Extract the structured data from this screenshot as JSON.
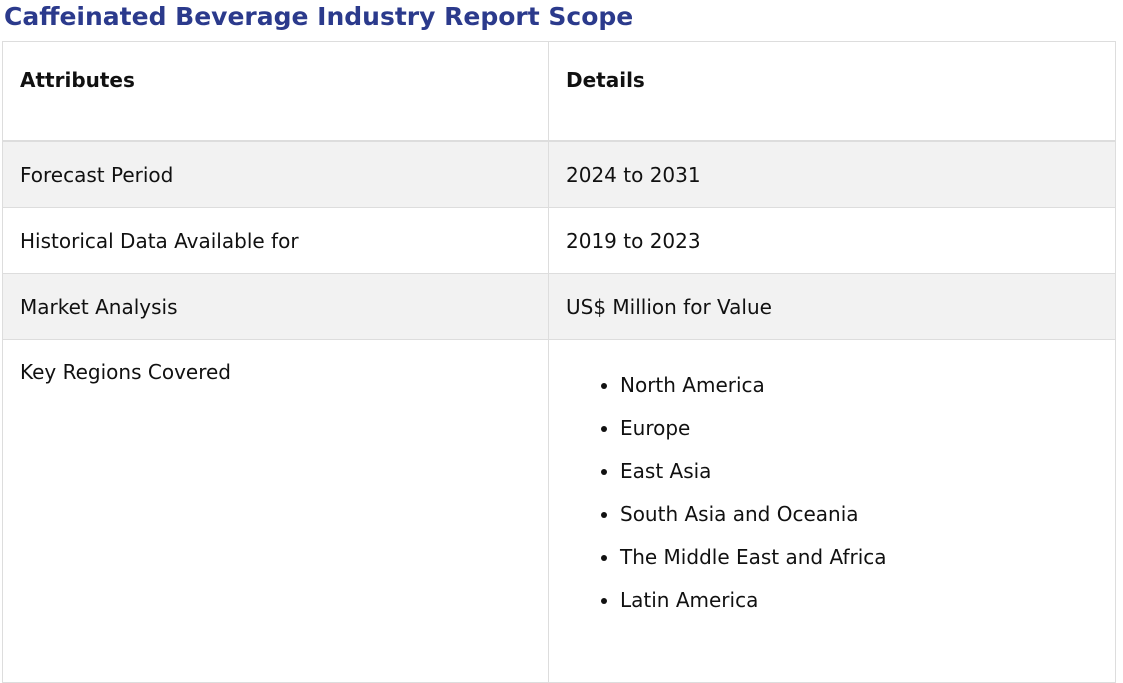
{
  "title": "Caffeinated Beverage Industry Report Scope",
  "table": {
    "headers": [
      "Attributes",
      "Details"
    ],
    "rows": [
      {
        "attribute": "Forecast Period",
        "detail": "2024 to 2031"
      },
      {
        "attribute": "Historical Data Available for",
        "detail": "2019 to 2023"
      },
      {
        "attribute": "Market Analysis",
        "detail": "US$ Million for Value"
      }
    ],
    "regions_attribute": "Key Regions Covered",
    "regions": [
      "North America",
      "Europe",
      "East Asia",
      "South Asia and Oceania",
      "The Middle East and Africa",
      "Latin America"
    ]
  }
}
